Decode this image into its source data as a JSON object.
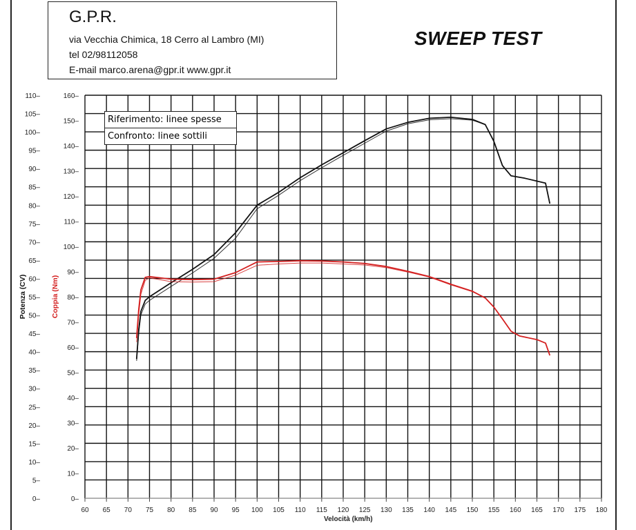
{
  "header": {
    "company": "G.P.R.",
    "address": "via Vecchia Chimica, 18 Cerro al Lambro (MI)",
    "phone": "tel 02/98112058",
    "contact": "E-mail marco.arena@gpr.it  www.gpr.it",
    "title": "SWEEP TEST"
  },
  "legend": {
    "reference": "Riferimento: linee spesse",
    "comparison": "Confronto: linee sottili"
  },
  "chart_data": {
    "type": "line",
    "xlabel": "Velocità (km/h)",
    "ylabel_left": "Potenza (CV)",
    "ylabel_right": "Coppia (Nm)",
    "xlim": [
      60,
      180
    ],
    "ylim_power": [
      0,
      110
    ],
    "ylim_torque": [
      0,
      160
    ],
    "x_ticks": [
      60,
      65,
      70,
      75,
      80,
      85,
      90,
      95,
      100,
      105,
      110,
      115,
      120,
      125,
      130,
      135,
      140,
      145,
      150,
      155,
      160,
      165,
      170,
      175,
      180
    ],
    "power_ticks": [
      0,
      5,
      10,
      15,
      20,
      25,
      30,
      35,
      40,
      45,
      50,
      55,
      60,
      65,
      70,
      75,
      80,
      85,
      90,
      95,
      100,
      105,
      110
    ],
    "torque_ticks": [
      0,
      10,
      20,
      30,
      40,
      50,
      60,
      70,
      80,
      90,
      100,
      110,
      120,
      130,
      140,
      150,
      160
    ],
    "grid": true,
    "colors": {
      "power": "#111111",
      "torque": "#d42020",
      "grid": "#111111"
    },
    "series": [
      {
        "axis": "power",
        "style": "thick",
        "x": [
          72,
          72.5,
          73,
          74,
          75,
          80,
          85,
          90,
          95,
          100,
          105,
          110,
          115,
          120,
          125,
          130,
          135,
          140,
          145,
          150,
          153,
          155,
          157,
          159,
          162,
          167,
          168
        ],
        "y": [
          38,
          46,
          51,
          54,
          55,
          58.8,
          62.5,
          66.5,
          72.5,
          80,
          83.5,
          87.5,
          91,
          94.3,
          97.6,
          100.8,
          102.6,
          103.7,
          104,
          103.4,
          102,
          97.4,
          90.8,
          88,
          87.4,
          86,
          80.4
        ]
      },
      {
        "axis": "power",
        "style": "thin",
        "x": [
          72,
          72.5,
          73,
          74,
          75,
          80,
          85,
          90,
          95,
          100,
          105,
          110,
          115,
          120,
          125,
          130,
          135,
          140,
          145,
          150,
          153,
          155,
          157,
          159,
          162,
          167,
          168
        ],
        "y": [
          37.5,
          45,
          50,
          53,
          54,
          57.8,
          61.5,
          65.5,
          71,
          79,
          82.7,
          86.7,
          90.2,
          93.6,
          96.9,
          100.2,
          102.2,
          103.3,
          103.6,
          103.2,
          102,
          97.4,
          90.8,
          88,
          87.4,
          86,
          80.4
        ]
      },
      {
        "axis": "torque",
        "style": "thick",
        "x": [
          72,
          72.5,
          73,
          74,
          75,
          80,
          85,
          90,
          95,
          100,
          105,
          110,
          115,
          120,
          125,
          130,
          135,
          140,
          145,
          150,
          153,
          155,
          157,
          159,
          161,
          165,
          167,
          168
        ],
        "y": [
          63.6,
          75,
          82.7,
          87.7,
          88,
          87,
          86.8,
          87,
          89.6,
          93.8,
          94,
          94.3,
          94.2,
          93.8,
          93.2,
          92,
          90.1,
          88,
          85,
          82.2,
          79.5,
          75.9,
          71.2,
          66.3,
          64.4,
          63,
          61.6,
          56.7
        ]
      },
      {
        "axis": "torque",
        "style": "thin",
        "x": [
          72,
          72.5,
          73,
          74,
          75,
          80,
          85,
          90,
          95,
          100,
          105,
          110,
          115,
          120,
          125,
          130,
          135,
          140,
          145,
          150,
          153,
          155,
          157,
          159,
          161,
          165,
          167,
          168
        ],
        "y": [
          62,
          73,
          81,
          86.5,
          87.5,
          86,
          85.8,
          86,
          88.6,
          92.5,
          93,
          93.4,
          93.4,
          93,
          92.6,
          91.6,
          89.8,
          87.8,
          84.7,
          82,
          79.5,
          75.9,
          71.2,
          66.3,
          64.4,
          63,
          61.6,
          56.7
        ]
      }
    ]
  }
}
